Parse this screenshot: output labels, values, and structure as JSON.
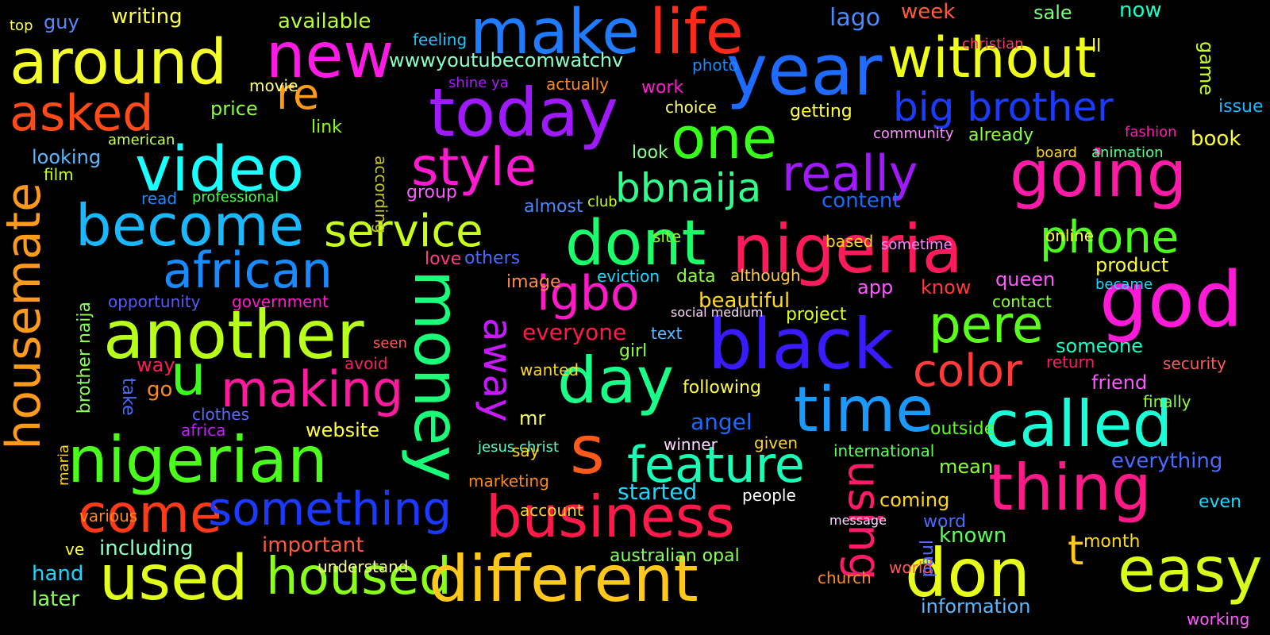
{
  "words": [
    {
      "text": "make",
      "color": "#1f7bff"
    },
    {
      "text": "life",
      "color": "#ff2a1a"
    },
    {
      "text": "around",
      "color": "#f4ff2a"
    },
    {
      "text": "new",
      "color": "#ff1ae6"
    },
    {
      "text": "year",
      "color": "#1f6bff"
    },
    {
      "text": "without",
      "color": "#f0ff1a"
    },
    {
      "text": "today",
      "color": "#a11aff"
    },
    {
      "text": "asked",
      "color": "#ff4a1a"
    },
    {
      "text": "re",
      "color": "#ff9a1a"
    },
    {
      "text": "big brother",
      "color": "#1a3cff"
    },
    {
      "text": "wwwyoutubecomwatchv",
      "color": "#8affc8"
    },
    {
      "text": "one",
      "color": "#36ff1a"
    },
    {
      "text": "video",
      "color": "#1affff"
    },
    {
      "text": "style",
      "color": "#ff1ad2"
    },
    {
      "text": "really",
      "color": "#a11aff"
    },
    {
      "text": "going",
      "color": "#ff1aa8"
    },
    {
      "text": "become",
      "color": "#1ab8ff"
    },
    {
      "text": "bbnaija",
      "color": "#30ff8a"
    },
    {
      "text": "service",
      "color": "#c8ff1a"
    },
    {
      "text": "dont",
      "color": "#1aff6a"
    },
    {
      "text": "nigeria",
      "color": "#ff1a5c"
    },
    {
      "text": "phone",
      "color": "#4aff1a"
    },
    {
      "text": "african",
      "color": "#1a8aff"
    },
    {
      "text": "money",
      "color": "#1aff7a"
    },
    {
      "text": "igbo",
      "color": "#ff1ac8"
    },
    {
      "text": "god",
      "color": "#ff1ad8"
    },
    {
      "text": "housemate",
      "color": "#ff9a1a"
    },
    {
      "text": "another",
      "color": "#b8ff1a"
    },
    {
      "text": "black",
      "color": "#3a1aff"
    },
    {
      "text": "pere",
      "color": "#5aff1a"
    },
    {
      "text": "u",
      "color": "#3aff1a"
    },
    {
      "text": "making",
      "color": "#ff1aa0"
    },
    {
      "text": "day",
      "color": "#1aff8a"
    },
    {
      "text": "away",
      "color": "#c81aff"
    },
    {
      "text": "color",
      "color": "#ff3a3a"
    },
    {
      "text": "time",
      "color": "#1a9aff"
    },
    {
      "text": "called",
      "color": "#1affd8"
    },
    {
      "text": "nigerian",
      "color": "#4aff1a"
    },
    {
      "text": "s",
      "color": "#ff5a1a"
    },
    {
      "text": "feature",
      "color": "#1affb8"
    },
    {
      "text": "using",
      "color": "#ff1a6a"
    },
    {
      "text": "thing",
      "color": "#ff1a8a"
    },
    {
      "text": "come",
      "color": "#ff3a1a"
    },
    {
      "text": "something",
      "color": "#1a3aff"
    },
    {
      "text": "business",
      "color": "#ff1a4a"
    },
    {
      "text": "used",
      "color": "#e0ff1a"
    },
    {
      "text": "housed",
      "color": "#8aff1a"
    },
    {
      "text": "different",
      "color": "#ffc81a"
    },
    {
      "text": "don",
      "color": "#e8ff1a"
    },
    {
      "text": "easy",
      "color": "#d8ff1a"
    },
    {
      "text": "t",
      "color": "#ffc81a"
    },
    {
      "text": "writing",
      "color": "#ffff4a"
    },
    {
      "text": "available",
      "color": "#b8ff3a"
    },
    {
      "text": "lago",
      "color": "#4a8aff"
    },
    {
      "text": "week",
      "color": "#ff5a3a"
    },
    {
      "text": "sale",
      "color": "#7aff7a"
    },
    {
      "text": "now",
      "color": "#1affc8"
    },
    {
      "text": "guy",
      "color": "#5a8aff"
    },
    {
      "text": "top",
      "color": "#ffff5a"
    },
    {
      "text": "feeling",
      "color": "#1ac8ff"
    },
    {
      "text": "christian",
      "color": "#ff3a6a"
    },
    {
      "text": "ll",
      "color": "#ffff3a"
    },
    {
      "text": "game",
      "color": "#c8ff1a"
    },
    {
      "text": "photo",
      "color": "#1a8aff"
    },
    {
      "text": "shine ya",
      "color": "#a81aff"
    },
    {
      "text": "actually",
      "color": "#ff8a1a"
    },
    {
      "text": "work",
      "color": "#ff1ad0"
    },
    {
      "text": "movie",
      "color": "#ffff8a"
    },
    {
      "text": "price",
      "color": "#8aff3a"
    },
    {
      "text": "choice",
      "color": "#ffff6a"
    },
    {
      "text": "getting",
      "color": "#ffff3a"
    },
    {
      "text": "issue",
      "color": "#1ab8ff"
    },
    {
      "text": "link",
      "color": "#8aff1a"
    },
    {
      "text": "american",
      "color": "#c8ff5a"
    },
    {
      "text": "community",
      "color": "#ff8aff"
    },
    {
      "text": "already",
      "color": "#8aff3a"
    },
    {
      "text": "fashion",
      "color": "#ff1ab8"
    },
    {
      "text": "book",
      "color": "#ffff3a"
    },
    {
      "text": "looking",
      "color": "#5ab8ff"
    },
    {
      "text": "look",
      "color": "#8aff8a"
    },
    {
      "text": "film",
      "color": "#c8ff1a"
    },
    {
      "text": "board",
      "color": "#ffd81a"
    },
    {
      "text": "animation",
      "color": "#5aff8a"
    },
    {
      "text": "read",
      "color": "#1a8aff"
    },
    {
      "text": "professional",
      "color": "#4aff4a"
    },
    {
      "text": "according",
      "color": "#c8c81a"
    },
    {
      "text": "group",
      "color": "#ff5aff"
    },
    {
      "text": "almost",
      "color": "#4a8aff"
    },
    {
      "text": "club",
      "color": "#c8ff1a"
    },
    {
      "text": "content",
      "color": "#1a6aff"
    },
    {
      "text": "online",
      "color": "#ffff3a"
    },
    {
      "text": "site",
      "color": "#8aff1a"
    },
    {
      "text": "based",
      "color": "#ffd81a"
    },
    {
      "text": "sometime",
      "color": "#ff8aff"
    },
    {
      "text": "product",
      "color": "#ffff3a"
    },
    {
      "text": "love",
      "color": "#ff3a8a"
    },
    {
      "text": "others",
      "color": "#4a6aff"
    },
    {
      "text": "image",
      "color": "#ff8a4a"
    },
    {
      "text": "eviction",
      "color": "#1ad8ff"
    },
    {
      "text": "data",
      "color": "#8aff3a"
    },
    {
      "text": "although",
      "color": "#ffc84a"
    },
    {
      "text": "app",
      "color": "#ff5aff"
    },
    {
      "text": "know",
      "color": "#ff3a3a"
    },
    {
      "text": "queen",
      "color": "#ff5aff"
    },
    {
      "text": "became",
      "color": "#1ad8ff"
    },
    {
      "text": "opportunity",
      "color": "#5a5aff"
    },
    {
      "text": "government",
      "color": "#ff1ac8"
    },
    {
      "text": "beautiful",
      "color": "#ffd81a"
    },
    {
      "text": "social medium",
      "color": "#ffd8ff"
    },
    {
      "text": "project",
      "color": "#d8ff1a"
    },
    {
      "text": "contact",
      "color": "#8aff3a"
    },
    {
      "text": "everyone",
      "color": "#ff1a4a"
    },
    {
      "text": "text",
      "color": "#5ab8ff"
    },
    {
      "text": "girl",
      "color": "#8aff3a"
    },
    {
      "text": "someone",
      "color": "#1affc8"
    },
    {
      "text": "way",
      "color": "#ff1a5a"
    },
    {
      "text": "seen",
      "color": "#ff5a5a"
    },
    {
      "text": "avoid",
      "color": "#ff1a6a"
    },
    {
      "text": "take",
      "color": "#4a6aff"
    },
    {
      "text": "go",
      "color": "#ff8a1a"
    },
    {
      "text": "brother naija",
      "color": "#8aff5a"
    },
    {
      "text": "wanted",
      "color": "#ffd81a"
    },
    {
      "text": "following",
      "color": "#ffff3a"
    },
    {
      "text": "return",
      "color": "#ff1a6a"
    },
    {
      "text": "security",
      "color": "#ff5a5a"
    },
    {
      "text": "friend",
      "color": "#ff5aff"
    },
    {
      "text": "finally",
      "color": "#8aff3a"
    },
    {
      "text": "clothes",
      "color": "#5a6aff"
    },
    {
      "text": "africa",
      "color": "#c81aff"
    },
    {
      "text": "website",
      "color": "#ffff3a"
    },
    {
      "text": "mr",
      "color": "#ffff6a"
    },
    {
      "text": "angel",
      "color": "#1a6aff"
    },
    {
      "text": "winner",
      "color": "#ffd8ff"
    },
    {
      "text": "given",
      "color": "#ffd81a"
    },
    {
      "text": "outside",
      "color": "#5aff1a"
    },
    {
      "text": "maria",
      "color": "#ffd81a"
    },
    {
      "text": "jesus christ",
      "color": "#5affc8"
    },
    {
      "text": "say",
      "color": "#ffd81a"
    },
    {
      "text": "international",
      "color": "#5aff5a"
    },
    {
      "text": "everything",
      "color": "#4a6aff"
    },
    {
      "text": "mean",
      "color": "#8aff3a"
    },
    {
      "text": "marketing",
      "color": "#ff8a1a"
    },
    {
      "text": "started",
      "color": "#1ad8ff"
    },
    {
      "text": "people",
      "color": "#ffffff"
    },
    {
      "text": "coming",
      "color": "#ffd81a"
    },
    {
      "text": "important",
      "color": "#ff5a3a"
    },
    {
      "text": "word",
      "color": "#4a6aff"
    },
    {
      "text": "known",
      "color": "#5aff5a"
    },
    {
      "text": "including",
      "color": "#8affc8"
    },
    {
      "text": "month",
      "color": "#ffd81a"
    },
    {
      "text": "hand",
      "color": "#1ad8ff"
    },
    {
      "text": "australian opal",
      "color": "#8aff5a"
    },
    {
      "text": "world",
      "color": "#ff5a5a"
    },
    {
      "text": "church",
      "color": "#ff8a1a"
    },
    {
      "text": "information",
      "color": "#5ab8ff"
    },
    {
      "text": "later",
      "color": "#8aff5a"
    },
    {
      "text": "understand",
      "color": "#ffff8a"
    },
    {
      "text": "ve",
      "color": "#ffff3a"
    },
    {
      "text": "various",
      "color": "#ff8a1a"
    },
    {
      "text": "account",
      "color": "#ffd81a"
    },
    {
      "text": "message",
      "color": "#ffd8ff"
    },
    {
      "text": "working",
      "color": "#ff5aff"
    },
    {
      "text": "even",
      "color": "#1ad8ff"
    },
    {
      "text": "paul",
      "color": "#5a6aff"
    }
  ]
}
